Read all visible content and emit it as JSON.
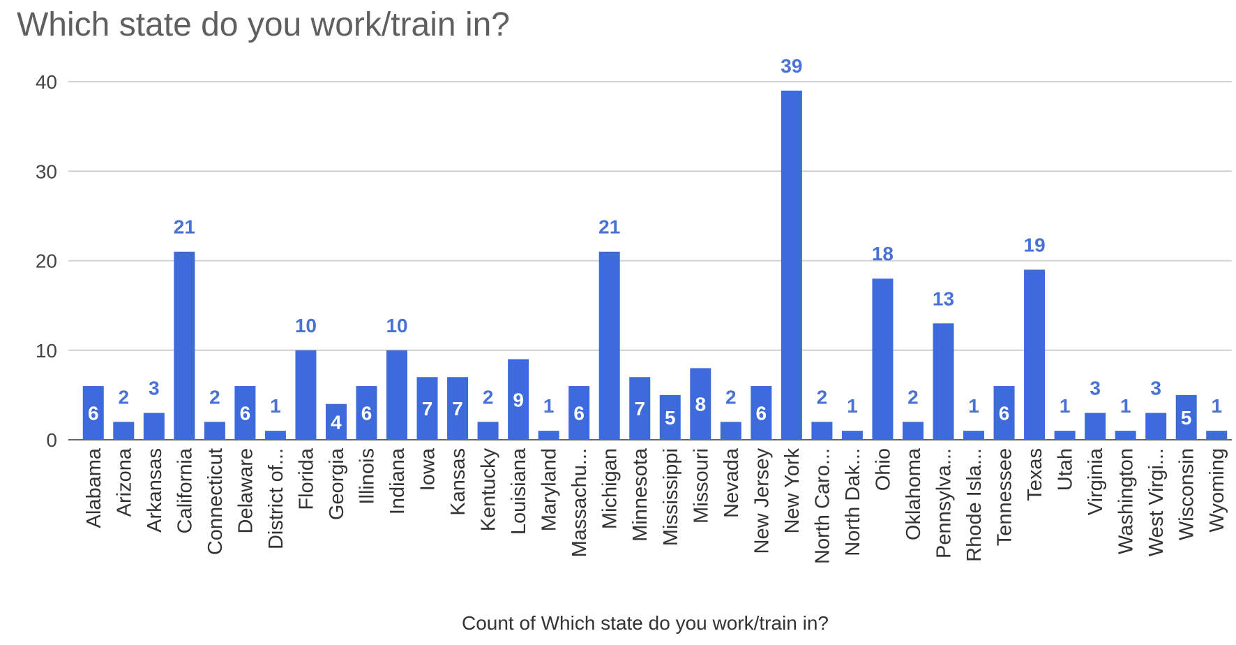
{
  "chart_data": {
    "type": "bar",
    "title": "Which state do you work/train in?",
    "xlabel": "Count of Which state do you work/train in?",
    "ylabel": "",
    "ylim": [
      0,
      40
    ],
    "yticks": [
      0,
      10,
      20,
      30,
      40
    ],
    "grid": true,
    "legend": "none",
    "bar_color": "#3d6bdb",
    "label_color_outside": "#4a72d4",
    "label_color_inside": "#ffffff",
    "categories": [
      "Alabama",
      "Arizona",
      "Arkansas",
      "California",
      "Connecticut",
      "Delaware",
      "District of...",
      "Florida",
      "Georgia",
      "Illinois",
      "Indiana",
      "Iowa",
      "Kansas",
      "Kentucky",
      "Louisiana",
      "Maryland",
      "Massachu...",
      "Michigan",
      "Minnesota",
      "Mississippi",
      "Missouri",
      "Nevada",
      "New Jersey",
      "New York",
      "North Caro...",
      "North Dak...",
      "Ohio",
      "Oklahoma",
      "Pennsylva...",
      "Rhode Isla...",
      "Tennessee",
      "Texas",
      "Utah",
      "Virginia",
      "Washington",
      "West Virgi...",
      "Wisconsin",
      "Wyoming"
    ],
    "values": [
      6,
      2,
      3,
      21,
      2,
      6,
      1,
      10,
      4,
      6,
      10,
      7,
      7,
      2,
      9,
      1,
      6,
      21,
      7,
      5,
      8,
      2,
      6,
      39,
      2,
      1,
      18,
      2,
      13,
      1,
      6,
      19,
      1,
      3,
      1,
      3,
      5,
      1
    ]
  }
}
